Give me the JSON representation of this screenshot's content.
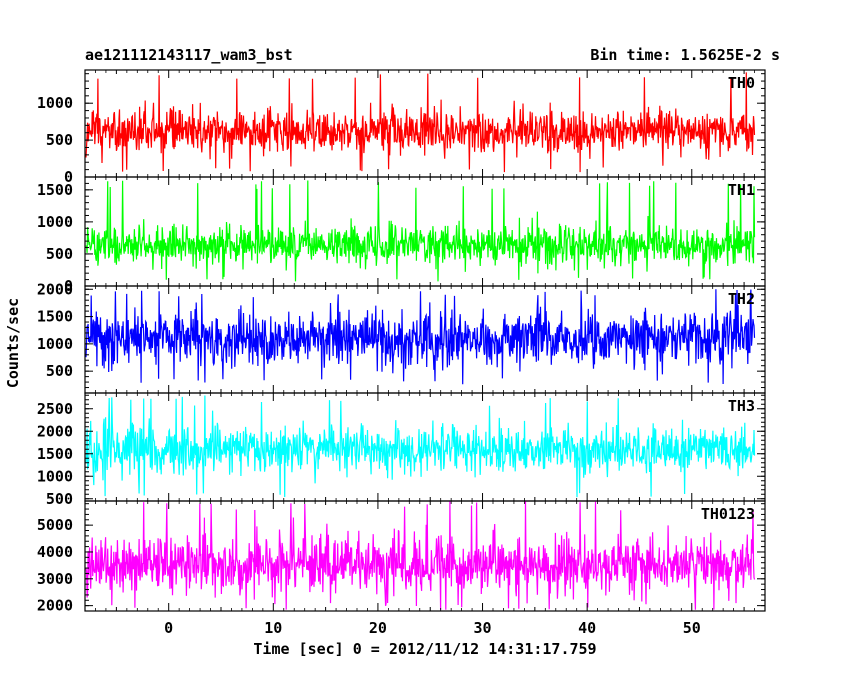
{
  "header": {
    "title": "ae121112143117_wam3_bst",
    "bin_time": "Bin time: 1.5625E-2 s"
  },
  "chart_data": {
    "type": "line",
    "xlabel": "Time [sec] 0 = 2012/11/12 14:31:17.759",
    "ylabel": "Counts/sec",
    "xlim": [
      -8,
      57
    ],
    "xticks": [
      0,
      10,
      20,
      30,
      40,
      50
    ],
    "x_data_range": [
      -7.9,
      56.0
    ],
    "grid": false,
    "panels": [
      {
        "name": "TH0",
        "color": "#ff0000",
        "ylim": [
          0,
          1450
        ],
        "yticks": [
          0,
          500,
          1000
        ],
        "mean": 620,
        "spread": 150,
        "min": 60,
        "max": 1450
      },
      {
        "name": "TH1",
        "color": "#00ff00",
        "ylim": [
          0,
          1700
        ],
        "yticks": [
          0,
          500,
          1000,
          1500
        ],
        "mean": 640,
        "spread": 155,
        "min": 60,
        "max": 1650
      },
      {
        "name": "TH2",
        "color": "#0000ff",
        "ylim": [
          100,
          2060
        ],
        "yticks": [
          500,
          1000,
          1500,
          2000
        ],
        "mean": 1100,
        "spread": 250,
        "min": 250,
        "max": 2000
      },
      {
        "name": "TH3",
        "color": "#00ffff",
        "ylim": [
          450,
          2850
        ],
        "yticks": [
          500,
          1000,
          1500,
          2000,
          2500
        ],
        "mean": 1600,
        "spread": 270,
        "min": 500,
        "max": 2800
      },
      {
        "name": "TH0123",
        "color": "#ff00ff",
        "ylim": [
          1800,
          5900
        ],
        "yticks": [
          2000,
          3000,
          4000,
          5000
        ],
        "mean": 3550,
        "spread": 540,
        "min": 1850,
        "max": 5900
      }
    ]
  }
}
